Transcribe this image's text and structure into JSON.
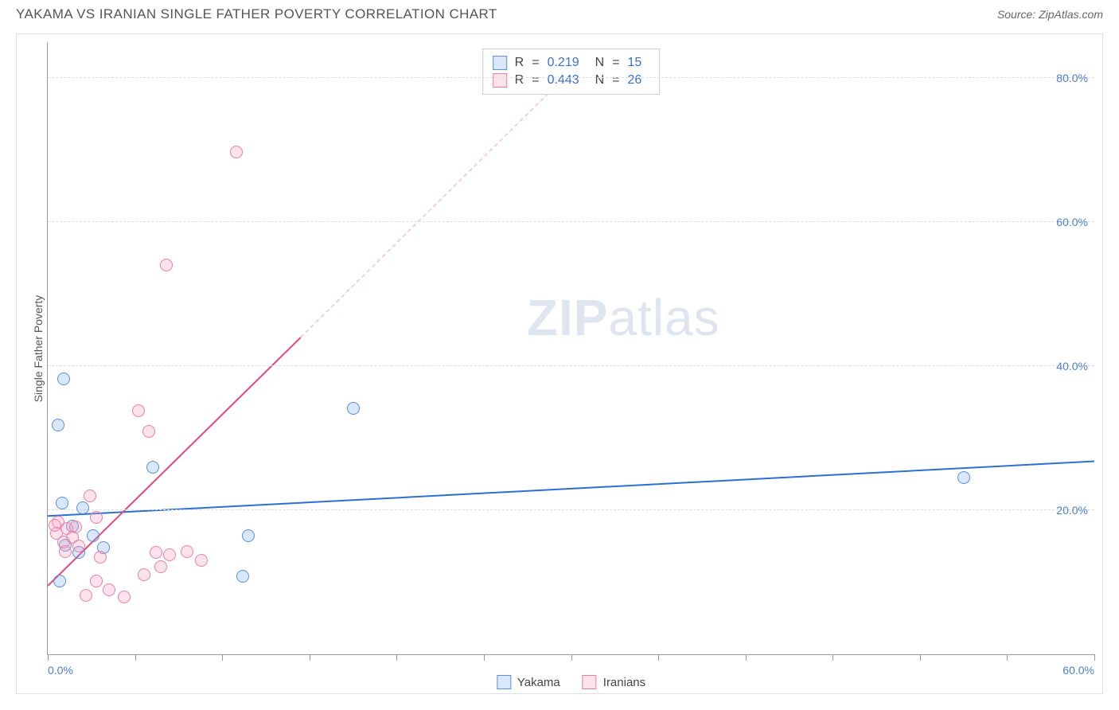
{
  "title": "YAKAMA VS IRANIAN SINGLE FATHER POVERTY CORRELATION CHART",
  "source": "Source: ZipAtlas.com",
  "watermark_zip": "ZIP",
  "watermark_atlas": "atlas",
  "y_axis_label": "Single Father Poverty",
  "chart": {
    "type": "scatter",
    "xlim": [
      0,
      60
    ],
    "ylim": [
      0,
      85
    ],
    "x_ticks": [
      0,
      5,
      10,
      15,
      20,
      25,
      30,
      35,
      40,
      45,
      50,
      55,
      60
    ],
    "x_tick_labels_shown": {
      "0": "0.0%",
      "60": "60.0%"
    },
    "y_ticks": [
      20,
      40,
      60,
      80
    ],
    "y_tick_labels": {
      "20": "20.0%",
      "40": "40.0%",
      "60": "60.0%",
      "80": "80.0%"
    },
    "grid_color": "#dddddd",
    "background_color": "#ffffff",
    "marker_radius": 8,
    "series": [
      {
        "name": "Yakama",
        "fill": "rgba(120,170,230,0.28)",
        "stroke": "#5b8fd6",
        "r_value": "0.219",
        "n_value": "15",
        "trend": {
          "x1": 0,
          "y1": 19.2,
          "x2": 60,
          "y2": 26.8,
          "color": "#2b6fd4",
          "width": 2,
          "dash": null
        },
        "points": [
          {
            "x": 0.9,
            "y": 38.2
          },
          {
            "x": 0.6,
            "y": 31.8
          },
          {
            "x": 6.0,
            "y": 26.0
          },
          {
            "x": 17.5,
            "y": 34.2
          },
          {
            "x": 0.8,
            "y": 21.0
          },
          {
            "x": 1.4,
            "y": 17.8
          },
          {
            "x": 1.8,
            "y": 14.2
          },
          {
            "x": 3.2,
            "y": 14.8
          },
          {
            "x": 2.6,
            "y": 16.5
          },
          {
            "x": 0.7,
            "y": 10.2
          },
          {
            "x": 11.5,
            "y": 16.5
          },
          {
            "x": 11.2,
            "y": 10.8
          },
          {
            "x": 52.5,
            "y": 24.5
          },
          {
            "x": 1.0,
            "y": 15.2
          },
          {
            "x": 2.0,
            "y": 20.3
          }
        ]
      },
      {
        "name": "Iranians",
        "fill": "rgba(245,160,190,0.30)",
        "stroke": "#e97fa7",
        "r_value": "0.443",
        "n_value": "26",
        "trend": {
          "x1": 0,
          "y1": 9.5,
          "x2": 14.5,
          "y2": 44.0,
          "color": "#e8447a",
          "width": 2,
          "dash": null
        },
        "trend_dashed": {
          "x1": 14.5,
          "y1": 44.0,
          "x2": 30,
          "y2": 81.0,
          "color": "rgba(232,68,122,0.35)",
          "width": 1.5
        },
        "points": [
          {
            "x": 10.8,
            "y": 69.8
          },
          {
            "x": 6.8,
            "y": 54.0
          },
          {
            "x": 5.2,
            "y": 33.8
          },
          {
            "x": 5.8,
            "y": 31.0
          },
          {
            "x": 2.4,
            "y": 22.0
          },
          {
            "x": 2.8,
            "y": 19.0
          },
          {
            "x": 0.6,
            "y": 18.3
          },
          {
            "x": 1.1,
            "y": 17.5
          },
          {
            "x": 1.6,
            "y": 17.7
          },
          {
            "x": 0.5,
            "y": 16.8
          },
          {
            "x": 1.4,
            "y": 16.2
          },
          {
            "x": 0.9,
            "y": 15.6
          },
          {
            "x": 1.8,
            "y": 15.0
          },
          {
            "x": 1.0,
            "y": 14.3
          },
          {
            "x": 0.4,
            "y": 17.9
          },
          {
            "x": 6.2,
            "y": 14.2
          },
          {
            "x": 7.0,
            "y": 13.8
          },
          {
            "x": 8.0,
            "y": 14.3
          },
          {
            "x": 8.8,
            "y": 13.0
          },
          {
            "x": 6.5,
            "y": 12.2
          },
          {
            "x": 5.5,
            "y": 11.0
          },
          {
            "x": 2.8,
            "y": 10.2
          },
          {
            "x": 3.5,
            "y": 9.0
          },
          {
            "x": 2.2,
            "y": 8.2
          },
          {
            "x": 4.4,
            "y": 8.0
          },
          {
            "x": 3.0,
            "y": 13.5
          }
        ]
      }
    ],
    "stats_box": {
      "r_label": "R",
      "n_label": "N",
      "eq": "="
    },
    "legend_labels": {
      "yakama": "Yakama",
      "iranians": "Iranians"
    }
  }
}
